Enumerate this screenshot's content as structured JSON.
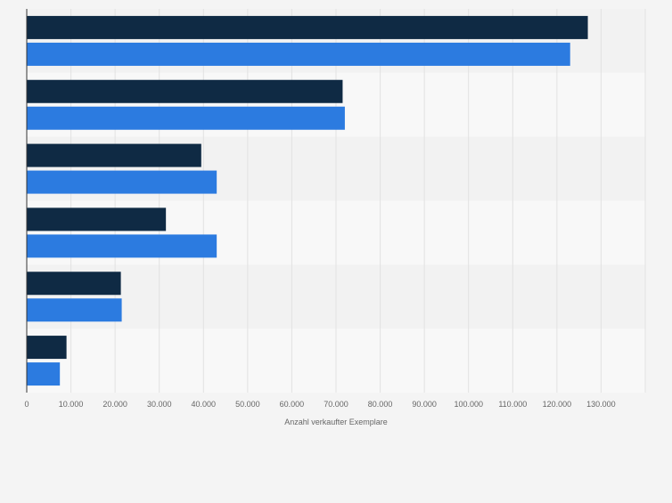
{
  "chart_data": {
    "type": "bar",
    "orientation": "horizontal",
    "title": "",
    "xlabel": "Anzahl verkaufter Exemplare",
    "ylabel": "",
    "categories": [
      "",
      "",
      "",
      "",
      "",
      ""
    ],
    "series": [
      {
        "color": "#0f2a44",
        "values": [
          127000,
          71500,
          39500,
          31500,
          21300,
          9000
        ]
      },
      {
        "color": "#2c7be0",
        "values": [
          123000,
          72000,
          43000,
          43000,
          21500,
          7500
        ]
      }
    ],
    "xlim": [
      0,
      140000
    ],
    "xticks": [
      0,
      10000,
      20000,
      30000,
      40000,
      50000,
      60000,
      70000,
      80000,
      90000,
      100000,
      110000,
      120000,
      130000
    ],
    "xtick_labels": [
      "0",
      "10.000",
      "20.000",
      "30.000",
      "40.000",
      "50.000",
      "60.000",
      "70.000",
      "80.000",
      "90.000",
      "100.000",
      "110.000",
      "120.000",
      "130.000"
    ],
    "grid": true,
    "legend": "none"
  }
}
